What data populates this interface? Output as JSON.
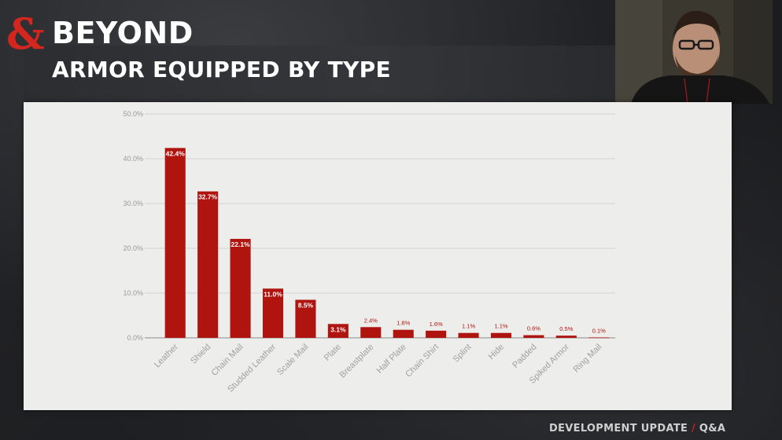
{
  "brand": {
    "name": "BEYOND",
    "ampersand_color": "#d3261f"
  },
  "slide": {
    "title": "ARMOR EQUIPPED BY TYPE"
  },
  "footer": {
    "left": "DEVELOPMENT UPDATE",
    "separator": "/",
    "right": "Q&A"
  },
  "colors": {
    "bar": "#b0140f",
    "bar_label_inside": "#ffffff",
    "bar_label_outside": "#b0140f",
    "grid": "#d4d4d2",
    "tick_text": "#9a9a9a"
  },
  "webcam": {
    "icon": "presenter-video-feed"
  },
  "chart_data": {
    "type": "bar",
    "categories": [
      "Leather",
      "Shield",
      "Chain Mail",
      "Studded Leather",
      "Scale Mail",
      "Plate",
      "Breastplate",
      "Half Plate",
      "Chain Shirt",
      "Splint",
      "Hide",
      "Padded",
      "Spiked Armor",
      "Ring Mail"
    ],
    "values": [
      42.4,
      32.7,
      22.1,
      11.0,
      8.5,
      3.1,
      2.4,
      1.8,
      1.6,
      1.1,
      1.1,
      0.6,
      0.5,
      0.1
    ],
    "value_labels": [
      "42.4%",
      "32.7%",
      "22.1%",
      "11.0%",
      "8.5%",
      "3.1%",
      "2.4%",
      "1.8%",
      "1.6%",
      "1.1%",
      "1.1%",
      "0.6%",
      "0.5%",
      "0.1%"
    ],
    "yticks": [
      "0.0%",
      "10.0%",
      "20.0%",
      "30.0%",
      "40.0%",
      "50.0%"
    ],
    "ylim": [
      0,
      50
    ],
    "title": "",
    "xlabel": "",
    "ylabel": "",
    "grid": true,
    "legend": "none"
  }
}
